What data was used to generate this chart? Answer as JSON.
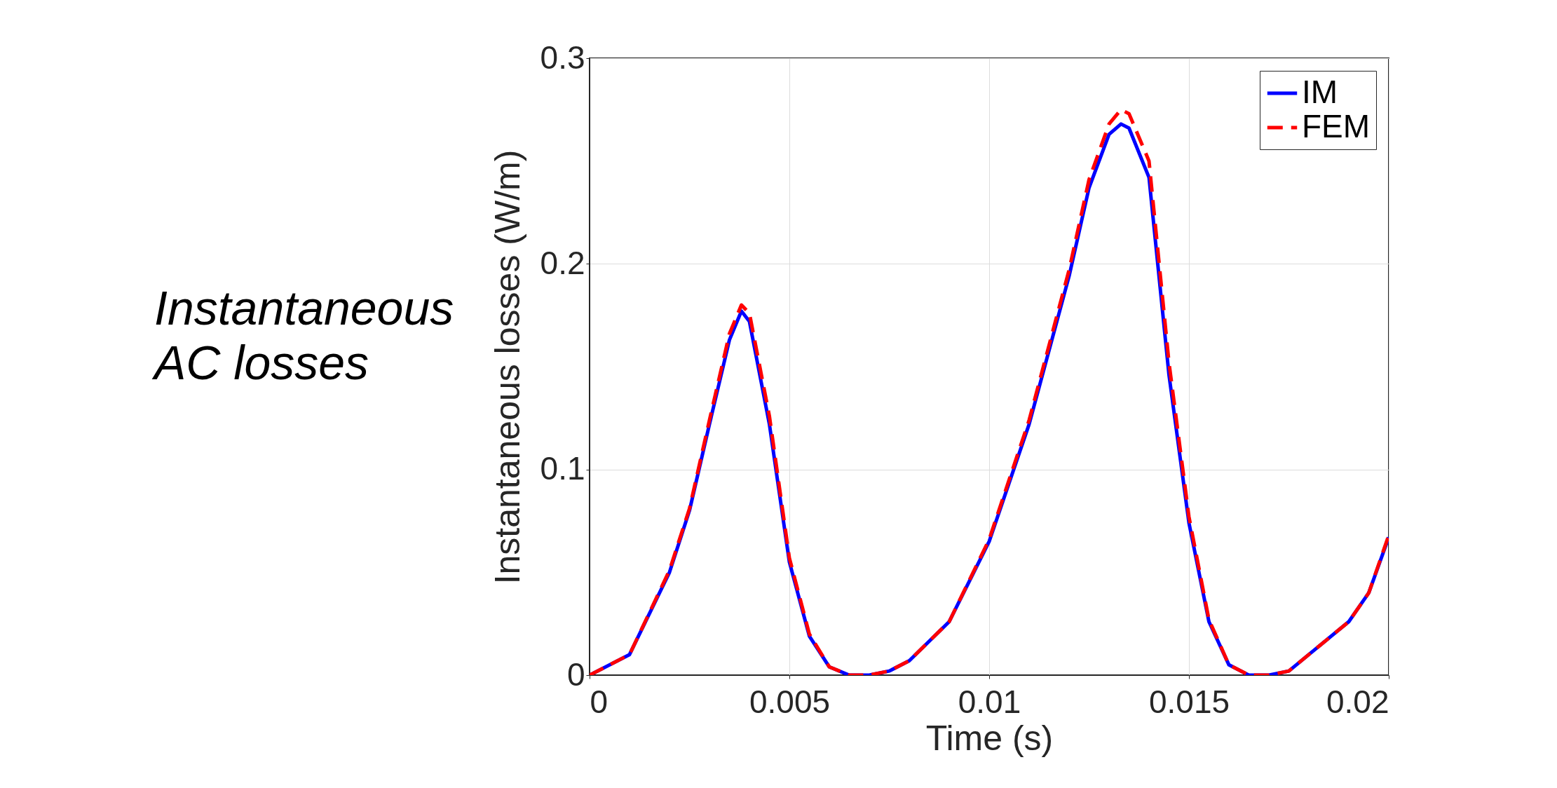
{
  "chart_data": {
    "type": "line",
    "xlabel": "Time (s)",
    "ylabel": "Instantaneous losses (W/m)",
    "annotations": [
      "Instantaneous AC losses"
    ],
    "xlim": [
      0,
      0.02
    ],
    "xticks": [
      0,
      0.005,
      0.01,
      0.015,
      0.02
    ],
    "ylim": [
      0,
      0.3
    ],
    "yticks": [
      0,
      0.1,
      0.2,
      0.3
    ],
    "grid": true,
    "legend": "top right",
    "marker": "none",
    "x": [
      0,
      0.001,
      0.002,
      0.0025,
      0.003,
      0.0035,
      0.0038,
      0.004,
      0.0045,
      0.005,
      0.0055,
      0.006,
      0.0065,
      0.007,
      0.0075,
      0.008,
      0.009,
      0.01,
      0.011,
      0.012,
      0.0125,
      0.013,
      0.0133,
      0.0135,
      0.014,
      0.0145,
      0.015,
      0.0155,
      0.016,
      0.0165,
      0.017,
      0.0175,
      0.018,
      0.019,
      0.0195,
      0.02
    ],
    "series": [
      {
        "name": "IM",
        "color": "#0000ff",
        "line_style": "solid",
        "values": [
          0,
          0.01,
          0.05,
          0.08,
          0.122,
          0.163,
          0.177,
          0.172,
          0.122,
          0.055,
          0.019,
          0.004,
          0,
          0,
          0.002,
          0.007,
          0.026,
          0.065,
          0.122,
          0.194,
          0.237,
          0.263,
          0.268,
          0.266,
          0.242,
          0.146,
          0.074,
          0.026,
          0.005,
          0,
          0,
          0.002,
          0.01,
          0.026,
          0.04,
          0.067
        ]
      },
      {
        "name": "FEM",
        "color": "#ff0000",
        "line_style": "dashed",
        "values": [
          0,
          0.01,
          0.051,
          0.081,
          0.124,
          0.166,
          0.18,
          0.176,
          0.126,
          0.057,
          0.02,
          0.004,
          0,
          0,
          0.002,
          0.007,
          0.026,
          0.066,
          0.124,
          0.197,
          0.241,
          0.268,
          0.275,
          0.273,
          0.25,
          0.152,
          0.077,
          0.027,
          0.005,
          0,
          0,
          0.002,
          0.01,
          0.026,
          0.04,
          0.068
        ]
      }
    ]
  }
}
